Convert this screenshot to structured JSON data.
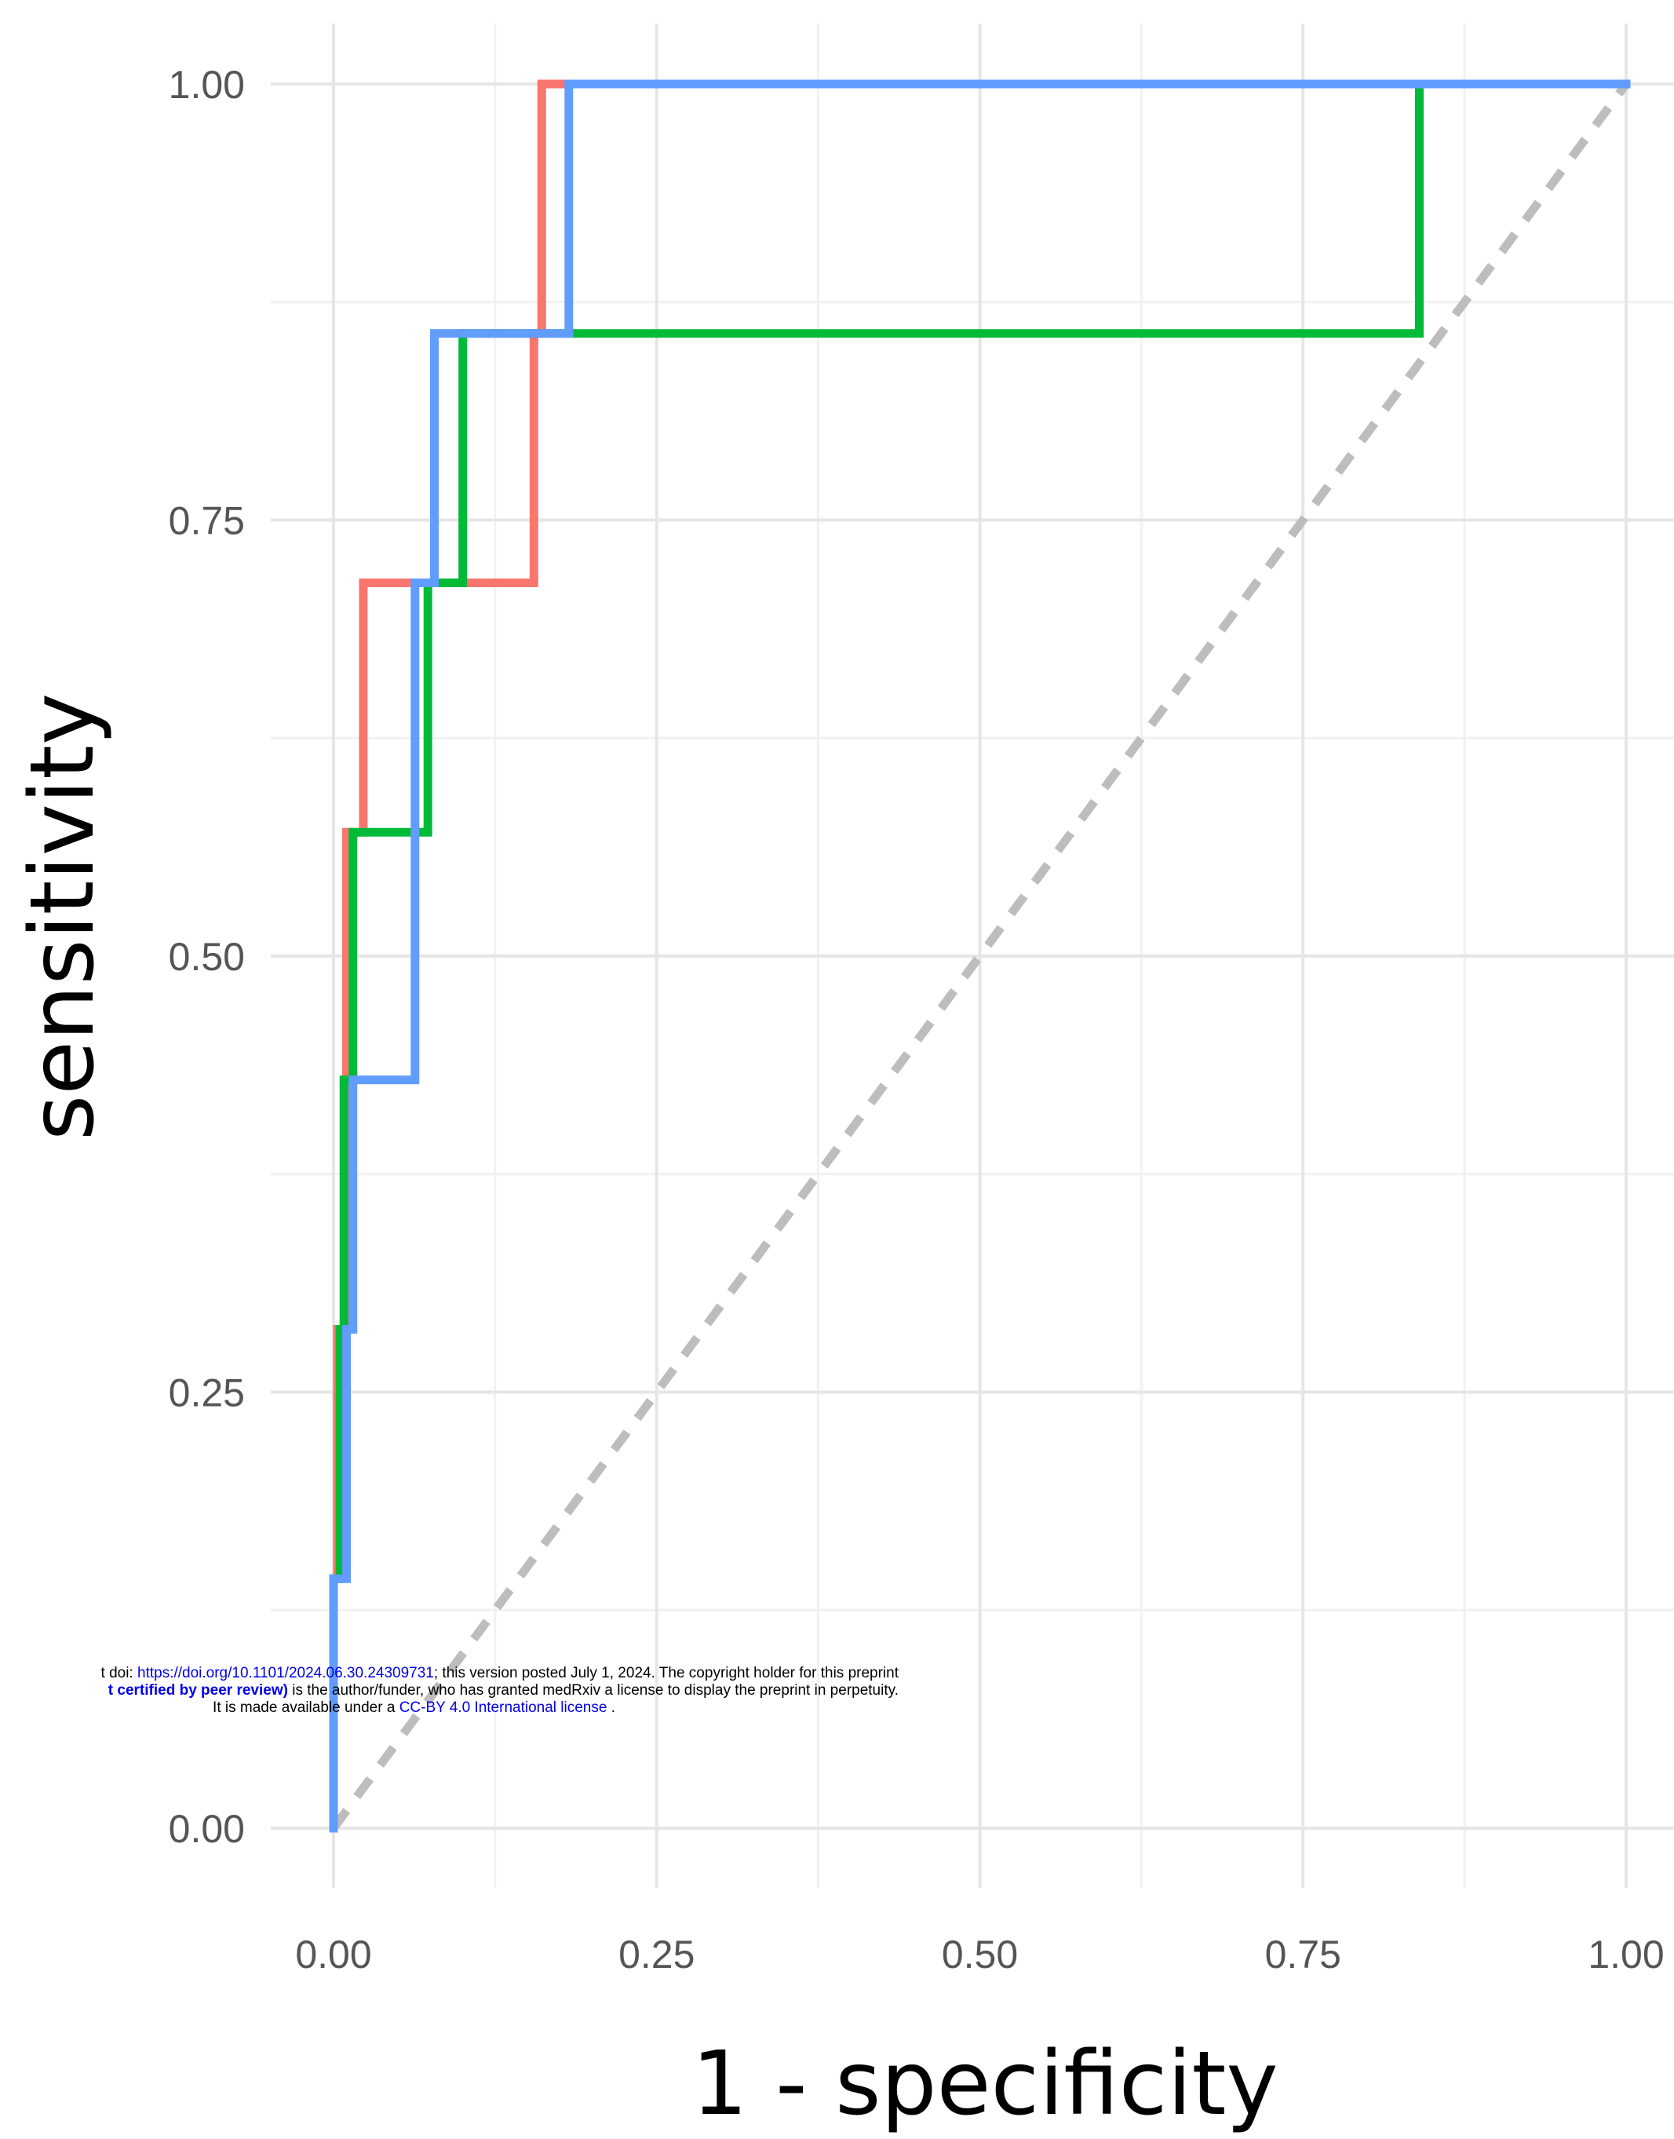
{
  "chart_data": {
    "type": "line",
    "title": "",
    "xlabel": "1 - specificity",
    "ylabel": "sensitivity",
    "xlim": [
      0,
      1
    ],
    "ylim": [
      0,
      1
    ],
    "x_ticks": [
      "0.00",
      "0.25",
      "0.50",
      "0.75",
      "1.00"
    ],
    "y_ticks": [
      "0.00",
      "0.25",
      "0.50",
      "0.75",
      "1.00"
    ],
    "x_tick_values": [
      0,
      0.25,
      0.5,
      0.75,
      1
    ],
    "y_tick_values": [
      0,
      0.25,
      0.5,
      0.75,
      1
    ],
    "grid": true,
    "legend": "none",
    "series": [
      {
        "color": "#F8766D",
        "style": "step",
        "points": [
          [
            0,
            0
          ],
          [
            0,
            0.143
          ],
          [
            0.003,
            0.143
          ],
          [
            0.003,
            0.286
          ],
          [
            0.01,
            0.286
          ],
          [
            0.01,
            0.571
          ],
          [
            0.023,
            0.571
          ],
          [
            0.023,
            0.714
          ],
          [
            0.155,
            0.714
          ],
          [
            0.155,
            0.857
          ],
          [
            0.161,
            0.857
          ],
          [
            0.161,
            1.0
          ],
          [
            1.0,
            1.0
          ]
        ]
      },
      {
        "color": "#00BA38",
        "style": "step",
        "points": [
          [
            0,
            0
          ],
          [
            0,
            0.143
          ],
          [
            0.005,
            0.143
          ],
          [
            0.005,
            0.286
          ],
          [
            0.008,
            0.286
          ],
          [
            0.008,
            0.429
          ],
          [
            0.015,
            0.429
          ],
          [
            0.015,
            0.571
          ],
          [
            0.073,
            0.571
          ],
          [
            0.073,
            0.714
          ],
          [
            0.1,
            0.714
          ],
          [
            0.1,
            0.857
          ],
          [
            0.84,
            0.857
          ],
          [
            0.84,
            1.0
          ],
          [
            1.0,
            1.0
          ]
        ]
      },
      {
        "color": "#619CFF",
        "style": "step",
        "points": [
          [
            0,
            0
          ],
          [
            0,
            0.143
          ],
          [
            0.01,
            0.143
          ],
          [
            0.01,
            0.286
          ],
          [
            0.015,
            0.286
          ],
          [
            0.015,
            0.429
          ],
          [
            0.063,
            0.429
          ],
          [
            0.063,
            0.714
          ],
          [
            0.078,
            0.714
          ],
          [
            0.078,
            0.857
          ],
          [
            0.182,
            0.857
          ],
          [
            0.182,
            1.0
          ],
          [
            1.0,
            1.0
          ]
        ]
      }
    ],
    "reference_line": {
      "color": "#bdbdbd",
      "style": "dashed",
      "points": [
        [
          0,
          0
        ],
        [
          1,
          1
        ]
      ]
    }
  },
  "watermark": {
    "line1_prefix": "t doi: ",
    "line1_link": "https://doi.org/10.1101/2024.06.30.24309731",
    "line1_suffix": "; this version posted July 1, 2024. The copyright holder for this preprint",
    "line2_bold": "t certified by peer review)",
    "line2_suffix": " is the author/funder, who has granted medRxiv a license to display the preprint in perpetuity.",
    "line3_prefix": "It is made available under a ",
    "line3_link": "CC-BY 4.0 International license",
    "line3_suffix": " ."
  }
}
